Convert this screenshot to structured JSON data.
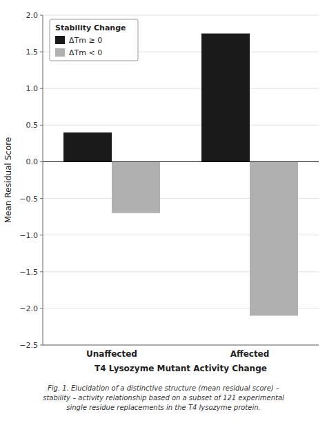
{
  "chart_data": {
    "type": "bar",
    "xlabel": "T4 Lysozyme Mutant Activity Change",
    "ylabel": "Mean Residual Score",
    "legend_title": "Stability Change",
    "caption": "Fig. 1.   Elucidation of a distinctive structure (mean residual score) –\nstability – activity relationship based on a subset of 121 experimental\nsingle residue replacements in the T4 lysozyme protein.",
    "categories": [
      "Unaffected",
      "Affected"
    ],
    "series": [
      {
        "name": "ΔTm ≥ 0",
        "color": "#1a1a1a",
        "values": [
          0.4,
          1.75
        ]
      },
      {
        "name": "ΔTm < 0",
        "color": "#b0b0b0",
        "values": [
          -0.7,
          -2.1
        ]
      }
    ],
    "ylim": [
      -2.5,
      2.0
    ],
    "yticks": [
      {
        "value": -2.5,
        "label": "−2.5"
      },
      {
        "value": -2.0,
        "label": "−2.0"
      },
      {
        "value": -1.5,
        "label": "−1.5"
      },
      {
        "value": -1.0,
        "label": "−1.0"
      },
      {
        "value": -0.5,
        "label": "−0.5"
      },
      {
        "value": 0.0,
        "label": "0.0"
      },
      0.5,
      {
        "value": 1.0,
        "label": "1.0"
      },
      1.5,
      {
        "value": 2.0,
        "label": "2.0"
      }
    ],
    "grid": true,
    "legend": "upper-left"
  }
}
